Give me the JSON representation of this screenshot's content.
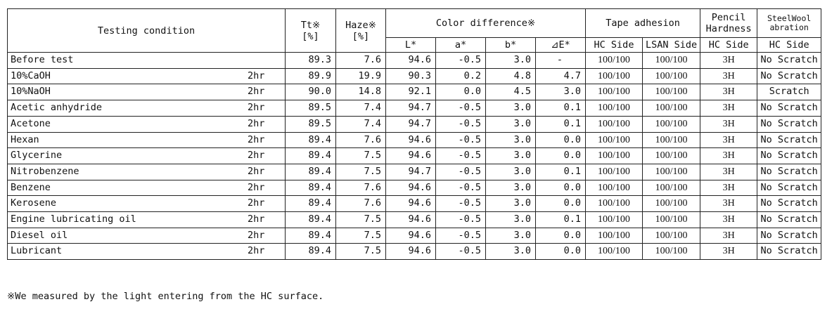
{
  "header": {
    "testing_condition": "Testing condition",
    "tt": "Tt※",
    "tt_unit": "[%]",
    "haze": "Haze※",
    "haze_unit": "[%]",
    "color_difference": "Color difference※",
    "tape_adhesion": "Tape adhesion",
    "pencil_hardness_1": "Pencil",
    "pencil_hardness_2": "Hardness",
    "steelwool_1": "SteelWool",
    "steelwool_2": "abration",
    "sub": {
      "L": "L*",
      "a": "a*",
      "b": "b*",
      "dE": "⊿E*",
      "hc_side": "HC Side",
      "lsan_side": "LSAN Side",
      "pencil_hc_side": "HC Side",
      "steel_hc_side": "HC Side"
    }
  },
  "rows": [
    {
      "condition": "Before test",
      "duration": "",
      "tt": "89.3",
      "haze": "7.6",
      "L": "94.6",
      "a": "-0.5",
      "b": "3.0",
      "dE": "-",
      "hc": "100/100",
      "lsan": "100/100",
      "pencil": "3H",
      "steel": "No Scratch"
    },
    {
      "condition": "10%CaOH",
      "duration": "2hr",
      "tt": "89.9",
      "haze": "19.9",
      "L": "90.3",
      "a": "0.2",
      "b": "4.8",
      "dE": "4.7",
      "hc": "100/100",
      "lsan": "100/100",
      "pencil": "3H",
      "steel": "No Scratch"
    },
    {
      "condition": "10%NaOH",
      "duration": "2hr",
      "tt": "90.0",
      "haze": "14.8",
      "L": "92.1",
      "a": "0.0",
      "b": "4.5",
      "dE": "3.0",
      "hc": "100/100",
      "lsan": "100/100",
      "pencil": "3H",
      "steel": "Scratch"
    },
    {
      "condition": "Acetic anhydride",
      "duration": "2hr",
      "tt": "89.5",
      "haze": "7.4",
      "L": "94.7",
      "a": "-0.5",
      "b": "3.0",
      "dE": "0.1",
      "hc": "100/100",
      "lsan": "100/100",
      "pencil": "3H",
      "steel": "No Scratch"
    },
    {
      "condition": "Acetone",
      "duration": "2hr",
      "tt": "89.5",
      "haze": "7.4",
      "L": "94.7",
      "a": "-0.5",
      "b": "3.0",
      "dE": "0.1",
      "hc": "100/100",
      "lsan": "100/100",
      "pencil": "3H",
      "steel": "No Scratch"
    },
    {
      "condition": "Hexan",
      "duration": "2hr",
      "tt": "89.4",
      "haze": "7.6",
      "L": "94.6",
      "a": "-0.5",
      "b": "3.0",
      "dE": "0.0",
      "hc": "100/100",
      "lsan": "100/100",
      "pencil": "3H",
      "steel": "No Scratch"
    },
    {
      "condition": "Glycerine",
      "duration": "2hr",
      "tt": "89.4",
      "haze": "7.5",
      "L": "94.6",
      "a": "-0.5",
      "b": "3.0",
      "dE": "0.0",
      "hc": "100/100",
      "lsan": "100/100",
      "pencil": "3H",
      "steel": "No Scratch"
    },
    {
      "condition": "Nitrobenzene",
      "duration": "2hr",
      "tt": "89.4",
      "haze": "7.5",
      "L": "94.7",
      "a": "-0.5",
      "b": "3.0",
      "dE": "0.1",
      "hc": "100/100",
      "lsan": "100/100",
      "pencil": "3H",
      "steel": "No Scratch"
    },
    {
      "condition": "Benzene",
      "duration": "2hr",
      "tt": "89.4",
      "haze": "7.6",
      "L": "94.6",
      "a": "-0.5",
      "b": "3.0",
      "dE": "0.0",
      "hc": "100/100",
      "lsan": "100/100",
      "pencil": "3H",
      "steel": "No Scratch"
    },
    {
      "condition": "Kerosene",
      "duration": "2hr",
      "tt": "89.4",
      "haze": "7.6",
      "L": "94.6",
      "a": "-0.5",
      "b": "3.0",
      "dE": "0.0",
      "hc": "100/100",
      "lsan": "100/100",
      "pencil": "3H",
      "steel": "No Scratch"
    },
    {
      "condition": "Engine lubricating oil",
      "duration": "2hr",
      "tt": "89.4",
      "haze": "7.5",
      "L": "94.6",
      "a": "-0.5",
      "b": "3.0",
      "dE": "0.1",
      "hc": "100/100",
      "lsan": "100/100",
      "pencil": "3H",
      "steel": "No Scratch"
    },
    {
      "condition": "Diesel oil",
      "duration": "2hr",
      "tt": "89.4",
      "haze": "7.5",
      "L": "94.6",
      "a": "-0.5",
      "b": "3.0",
      "dE": "0.0",
      "hc": "100/100",
      "lsan": "100/100",
      "pencil": "3H",
      "steel": "No Scratch"
    },
    {
      "condition": "Lubricant",
      "duration": "2hr",
      "tt": "89.4",
      "haze": "7.5",
      "L": "94.6",
      "a": "-0.5",
      "b": "3.0",
      "dE": "0.0",
      "hc": "100/100",
      "lsan": "100/100",
      "pencil": "3H",
      "steel": "No Scratch"
    }
  ],
  "footnote": "※We measured by the light entering from the HC surface."
}
